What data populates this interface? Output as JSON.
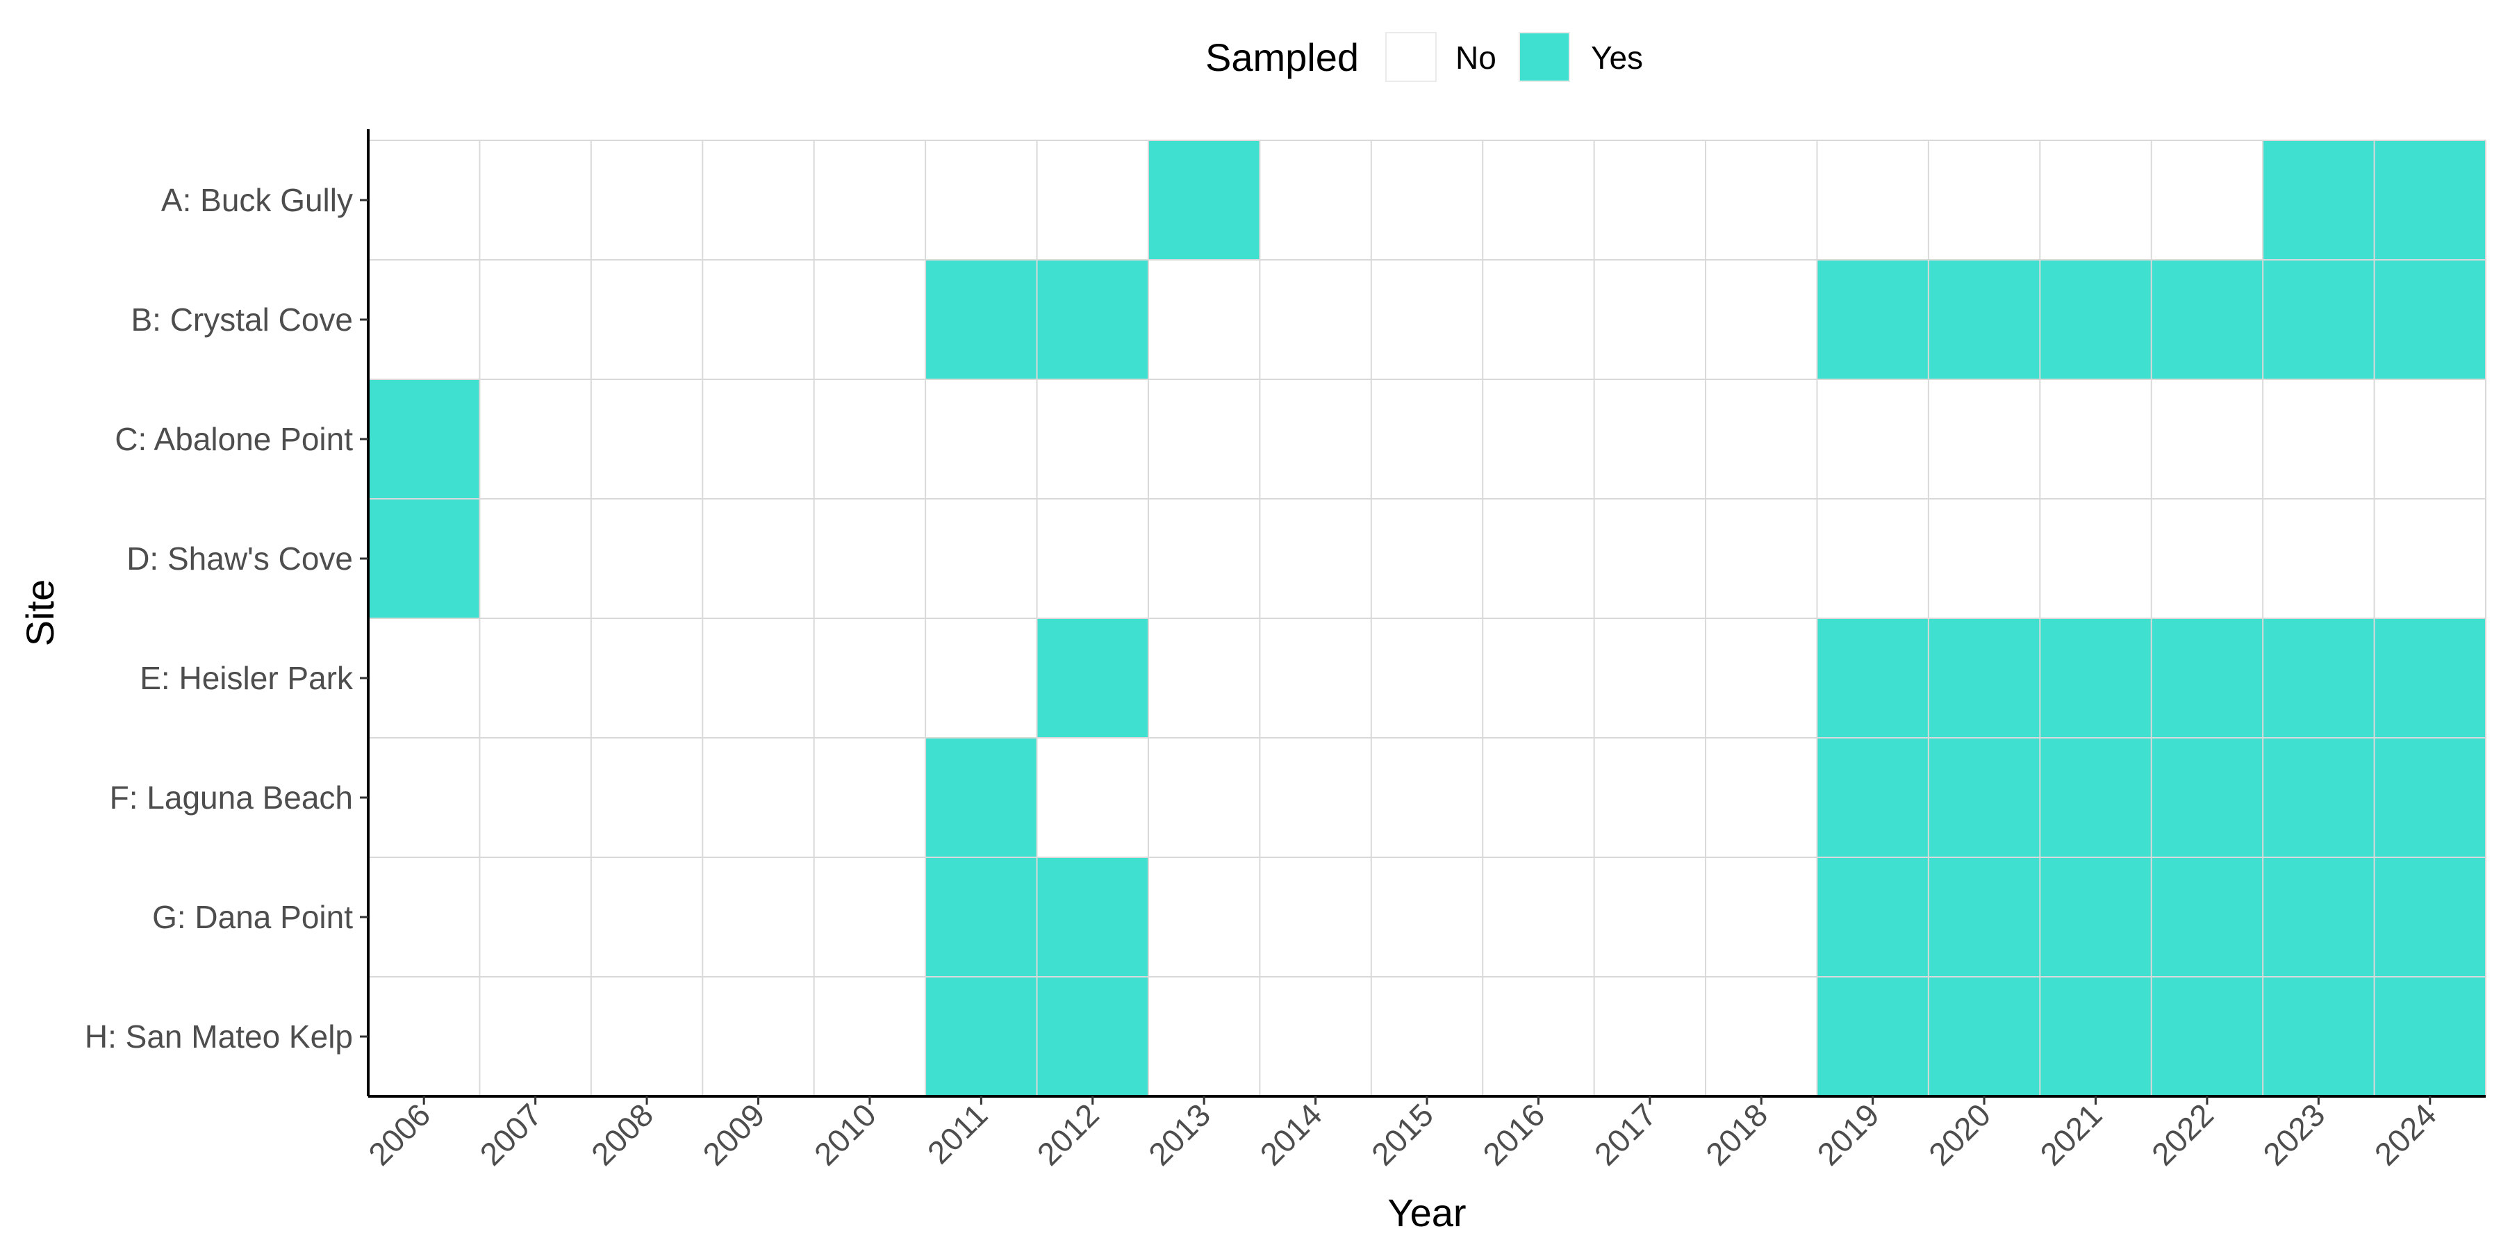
{
  "chart_data": {
    "type": "heatmap",
    "xlabel": "Year",
    "ylabel": "Site",
    "x": [
      "2006",
      "2007",
      "2008",
      "2009",
      "2010",
      "2011",
      "2012",
      "2013",
      "2014",
      "2015",
      "2016",
      "2017",
      "2018",
      "2019",
      "2020",
      "2021",
      "2022",
      "2023",
      "2024"
    ],
    "y": [
      "A: Buck Gully",
      "B: Crystal Cove",
      "C: Abalone Point",
      "D: Shaw's Cove",
      "E: Heisler Park",
      "F: Laguna Beach",
      "G: Dana Point",
      "H: San Mateo Kelp"
    ],
    "legend": {
      "title": "Sampled",
      "position": "top",
      "entries": [
        {
          "label": "No",
          "color": "#ffffff"
        },
        {
          "label": "Yes",
          "color": "#40e0d0"
        }
      ]
    },
    "sampled": {
      "A: Buck Gully": [
        "2013",
        "2023",
        "2024"
      ],
      "B: Crystal Cove": [
        "2011",
        "2012",
        "2019",
        "2020",
        "2021",
        "2022",
        "2023",
        "2024"
      ],
      "C: Abalone Point": [
        "2006"
      ],
      "D: Shaw's Cove": [
        "2006"
      ],
      "E: Heisler Park": [
        "2012",
        "2019",
        "2020",
        "2021",
        "2022",
        "2023",
        "2024"
      ],
      "F: Laguna Beach": [
        "2011",
        "2019",
        "2020",
        "2021",
        "2022",
        "2023",
        "2024"
      ],
      "G: Dana Point": [
        "2011",
        "2012",
        "2019",
        "2020",
        "2021",
        "2022",
        "2023",
        "2024"
      ],
      "H: San Mateo Kelp": [
        "2011",
        "2012",
        "2019",
        "2020",
        "2021",
        "2022",
        "2023",
        "2024"
      ]
    },
    "grid": true
  }
}
